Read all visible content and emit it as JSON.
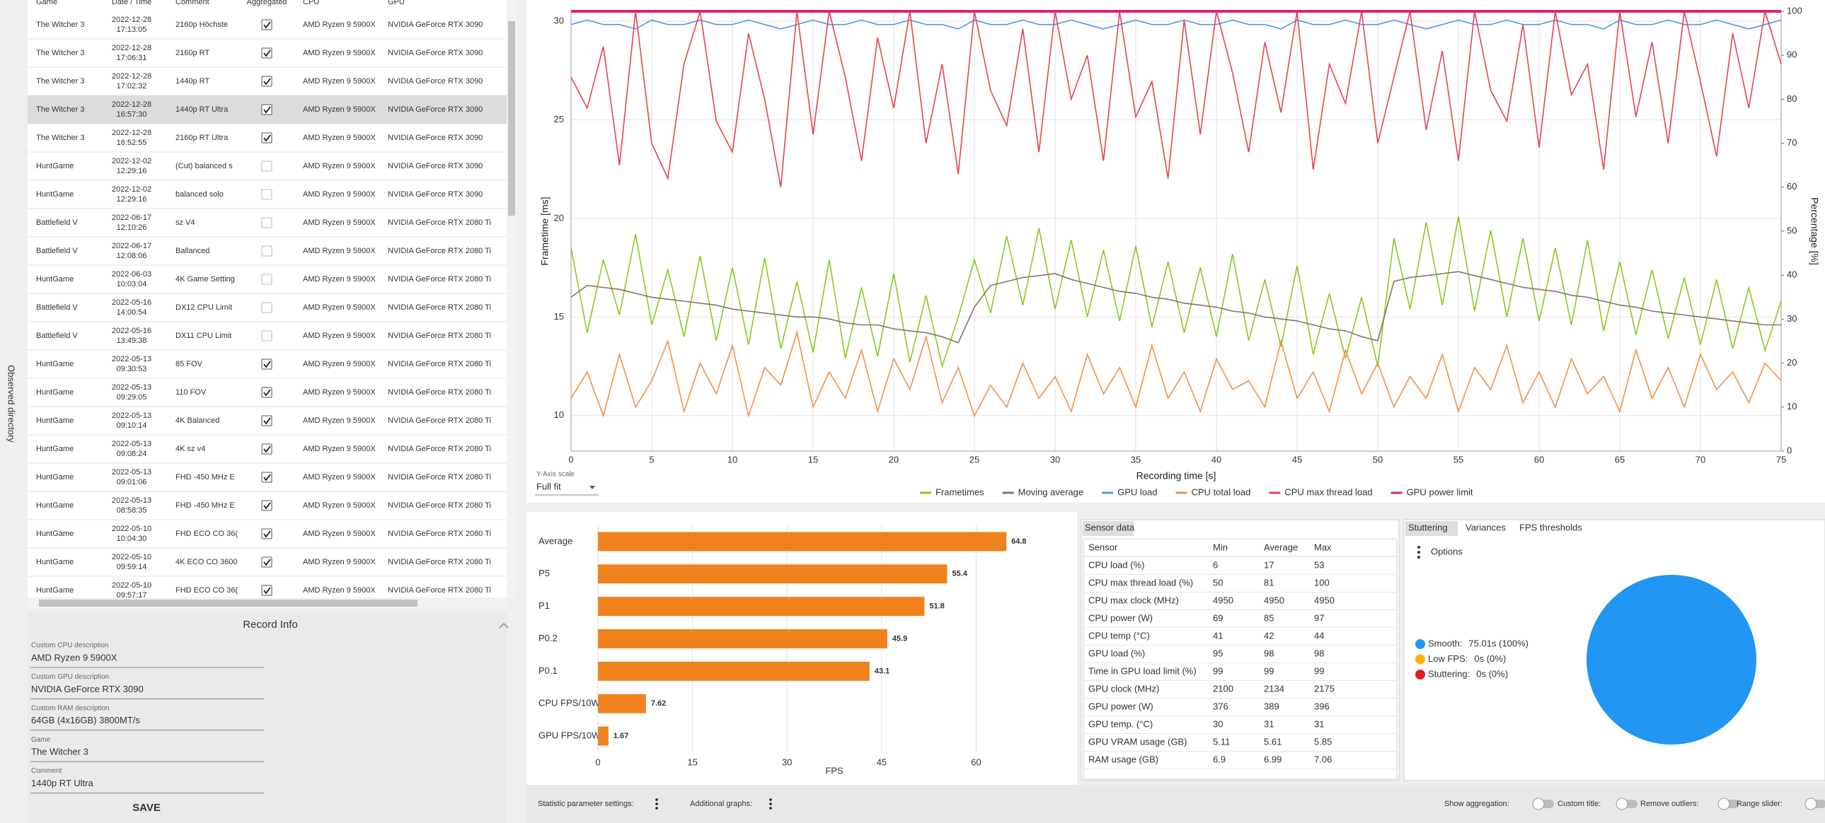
{
  "sidebar": {
    "label": "Observed directory"
  },
  "runs_table": {
    "headers": [
      "Game",
      "Date / Time",
      "Comment",
      "Aggregated",
      "CPU",
      "GPU"
    ],
    "rows": [
      {
        "game": "The Witcher 3",
        "date": "2022-12-28",
        "time": "17:13:05",
        "comment": "2160p Höchste",
        "aggregated": true,
        "cpu": "AMD Ryzen 9 5900X",
        "gpu": "NVIDIA GeForce RTX 3090"
      },
      {
        "game": "The Witcher 3",
        "date": "2022-12-28",
        "time": "17:06:31",
        "comment": "2160p RT",
        "aggregated": true,
        "cpu": "AMD Ryzen 9 5900X",
        "gpu": "NVIDIA GeForce RTX 3090"
      },
      {
        "game": "The Witcher 3",
        "date": "2022-12-28",
        "time": "17:02:32",
        "comment": "1440p RT",
        "aggregated": true,
        "cpu": "AMD Ryzen 9 5900X",
        "gpu": "NVIDIA GeForce RTX 3090"
      },
      {
        "game": "The Witcher 3",
        "date": "2022-12-28",
        "time": "16:57:30",
        "comment": "1440p RT Ultra",
        "aggregated": true,
        "cpu": "AMD Ryzen 9 5900X",
        "gpu": "NVIDIA GeForce RTX 3090",
        "selected": true
      },
      {
        "game": "The Witcher 3",
        "date": "2022-12-28",
        "time": "16:52:55",
        "comment": "2160p RT Ultra",
        "aggregated": true,
        "cpu": "AMD Ryzen 9 5900X",
        "gpu": "NVIDIA GeForce RTX 3090"
      },
      {
        "game": "HuntGame",
        "date": "2022-12-02",
        "time": "12:29:16",
        "comment": "(Cut) balanced s",
        "aggregated": false,
        "cpu": "AMD Ryzen 9 5900X",
        "gpu": "NVIDIA GeForce RTX 3090"
      },
      {
        "game": "HuntGame",
        "date": "2022-12-02",
        "time": "12:29:16",
        "comment": "balanced solo",
        "aggregated": false,
        "cpu": "AMD Ryzen 9 5900X",
        "gpu": "NVIDIA GeForce RTX 3090"
      },
      {
        "game": "Battlefield V",
        "date": "2022-06-17",
        "time": "12:10:26",
        "comment": "sz V4",
        "aggregated": false,
        "cpu": "AMD Ryzen 9 5900X",
        "gpu": "NVIDIA GeForce RTX 2080 Ti"
      },
      {
        "game": "Battlefield V",
        "date": "2022-06-17",
        "time": "12:08:06",
        "comment": "Ballanced",
        "aggregated": false,
        "cpu": "AMD Ryzen 9 5900X",
        "gpu": "NVIDIA GeForce RTX 2080 Ti"
      },
      {
        "game": "HuntGame",
        "date": "2022-06-03",
        "time": "10:03:04",
        "comment": "4K Game Setting",
        "aggregated": false,
        "cpu": "AMD Ryzen 9 5900X",
        "gpu": "NVIDIA GeForce RTX 2080 Ti"
      },
      {
        "game": "Battlefield V",
        "date": "2022-05-16",
        "time": "14:00:54",
        "comment": "DX12 CPU Limit",
        "aggregated": false,
        "cpu": "AMD Ryzen 9 5900X",
        "gpu": "NVIDIA GeForce RTX 2080 Ti"
      },
      {
        "game": "Battlefield V",
        "date": "2022-05-16",
        "time": "13:49:38",
        "comment": "DX11 CPU Limit",
        "aggregated": false,
        "cpu": "AMD Ryzen 9 5900X",
        "gpu": "NVIDIA GeForce RTX 2080 Ti"
      },
      {
        "game": "HuntGame",
        "date": "2022-05-13",
        "time": "09:30:53",
        "comment": "85 FOV",
        "aggregated": true,
        "cpu": "AMD Ryzen 9 5900X",
        "gpu": "NVIDIA GeForce RTX 2080 Ti"
      },
      {
        "game": "HuntGame",
        "date": "2022-05-13",
        "time": "09:29:05",
        "comment": "110 FOV",
        "aggregated": true,
        "cpu": "AMD Ryzen 9 5900X",
        "gpu": "NVIDIA GeForce RTX 2080 Ti"
      },
      {
        "game": "HuntGame",
        "date": "2022-05-13",
        "time": "09:10:14",
        "comment": "4K Balanced",
        "aggregated": true,
        "cpu": "AMD Ryzen 9 5900X",
        "gpu": "NVIDIA GeForce RTX 2080 Ti"
      },
      {
        "game": "HuntGame",
        "date": "2022-05-13",
        "time": "09:08:24",
        "comment": "4K sz v4",
        "aggregated": true,
        "cpu": "AMD Ryzen 9 5900X",
        "gpu": "NVIDIA GeForce RTX 2080 Ti"
      },
      {
        "game": "HuntGame",
        "date": "2022-05-13",
        "time": "09:01:06",
        "comment": "FHD -450 MHz E",
        "aggregated": true,
        "cpu": "AMD Ryzen 9 5900X",
        "gpu": "NVIDIA GeForce RTX 2080 Ti"
      },
      {
        "game": "HuntGame",
        "date": "2022-05-13",
        "time": "08:58:35",
        "comment": "FHD -450 MHz E",
        "aggregated": true,
        "cpu": "AMD Ryzen 9 5900X",
        "gpu": "NVIDIA GeForce RTX 2080 Ti"
      },
      {
        "game": "HuntGame",
        "date": "2022-05-10",
        "time": "10:04:30",
        "comment": "FHD ECO CO 36(",
        "aggregated": true,
        "cpu": "AMD Ryzen 9 5900X",
        "gpu": "NVIDIA GeForce RTX 2080 Ti"
      },
      {
        "game": "HuntGame",
        "date": "2022-05-10",
        "time": "09:59:14",
        "comment": "4K ECO CO 3600",
        "aggregated": true,
        "cpu": "AMD Ryzen 9 5900X",
        "gpu": "NVIDIA GeForce RTX 2080 Ti"
      },
      {
        "game": "HuntGame",
        "date": "2022-05-10",
        "time": "09:57:17",
        "comment": "FHD ECO CO 36(",
        "aggregated": true,
        "cpu": "AMD Ryzen 9 5900X",
        "gpu": "NVIDIA GeForce RTX 2080 Ti"
      }
    ]
  },
  "record_info": {
    "title": "Record Info",
    "fields": [
      {
        "label": "Custom CPU description",
        "value": "AMD Ryzen 9 5900X"
      },
      {
        "label": "Custom GPU description",
        "value": "NVIDIA GeForce RTX 3090"
      },
      {
        "label": "Custom RAM description",
        "value": "64GB (4x16GB) 3800MT/s"
      },
      {
        "label": "Game",
        "value": "The Witcher 3"
      },
      {
        "label": "Comment",
        "value": "1440p RT Ultra"
      }
    ],
    "save": "SAVE"
  },
  "chart_data": [
    {
      "type": "line",
      "xlabel": "Recording time [s]",
      "ylabel": "Frametime [ms]",
      "y2label": "Percentage [%]",
      "y_axis_scale_label": "Y-Axis scale",
      "y_axis_scale": "Full fit",
      "grid": true,
      "legend": "bottom",
      "x": [
        0,
        1,
        2,
        3,
        4,
        5,
        6,
        7,
        8,
        9,
        10,
        11,
        12,
        13,
        14,
        15,
        16,
        17,
        18,
        19,
        20,
        21,
        22,
        23,
        24,
        25,
        26,
        27,
        28,
        29,
        30,
        31,
        32,
        33,
        34,
        35,
        36,
        37,
        38,
        39,
        40,
        41,
        42,
        43,
        44,
        45,
        46,
        47,
        48,
        49,
        50,
        51,
        52,
        53,
        54,
        55,
        56,
        57,
        58,
        59,
        60,
        61,
        62,
        63,
        64,
        65,
        66,
        67,
        68,
        69,
        70,
        71,
        72,
        73,
        74,
        75
      ],
      "xlim": [
        0,
        75
      ],
      "xticks": [
        0,
        5,
        10,
        15,
        20,
        25,
        30,
        35,
        40,
        45,
        50,
        55,
        60,
        65,
        70,
        75
      ],
      "ylim": [
        8.2,
        30.5
      ],
      "yticks": [
        10,
        15,
        20,
        25,
        30
      ],
      "y2lim": [
        0,
        100
      ],
      "y2ticks": [
        0,
        10,
        20,
        30,
        40,
        50,
        60,
        70,
        80,
        90,
        100
      ],
      "series": [
        {
          "name": "Frametimes",
          "color": "#8cc81e",
          "axis": "y",
          "values": [
            18.5,
            14.2,
            17.9,
            15.1,
            19.2,
            14.6,
            17.4,
            14.0,
            18.1,
            13.8,
            17.5,
            13.6,
            18.0,
            13.4,
            16.8,
            13.2,
            17.9,
            12.9,
            16.5,
            13.0,
            17.2,
            12.7,
            16.1,
            12.5,
            15.0,
            17.9,
            15.2,
            19.1,
            15.6,
            19.5,
            15.4,
            18.9,
            15.0,
            18.4,
            14.8,
            18.6,
            14.5,
            17.8,
            14.2,
            17.5,
            14.0,
            18.2,
            13.8,
            16.9,
            13.5,
            17.6,
            13.1,
            16.2,
            12.9,
            16.0,
            12.5,
            19.0,
            15.4,
            19.8,
            15.6,
            20.1,
            15.3,
            19.4,
            15.0,
            19.0,
            14.8,
            18.5,
            14.6,
            18.9,
            14.3,
            17.8,
            14.1,
            17.4,
            13.9,
            17.0,
            13.6,
            16.9,
            13.4,
            16.5,
            13.3,
            15.8
          ]
        },
        {
          "name": "Moving average",
          "color": "#8a7464",
          "axis": "y",
          "values": [
            16.0,
            16.6,
            16.5,
            16.4,
            16.2,
            16.0,
            15.9,
            15.8,
            15.7,
            15.6,
            15.4,
            15.3,
            15.2,
            15.1,
            15.0,
            15.0,
            14.9,
            14.7,
            14.6,
            14.6,
            14.4,
            14.3,
            14.2,
            14.0,
            13.7,
            15.5,
            16.6,
            16.8,
            17.0,
            17.1,
            17.2,
            16.9,
            16.7,
            16.5,
            16.3,
            16.2,
            16.0,
            15.9,
            15.7,
            15.6,
            15.5,
            15.3,
            15.2,
            15.0,
            14.9,
            14.8,
            14.6,
            14.4,
            14.3,
            14.0,
            13.8,
            16.8,
            17.0,
            17.1,
            17.2,
            17.3,
            17.1,
            16.9,
            16.7,
            16.5,
            16.4,
            16.3,
            16.1,
            16.0,
            15.8,
            15.6,
            15.5,
            15.3,
            15.2,
            15.1,
            15.0,
            14.9,
            14.8,
            14.7,
            14.6,
            14.6
          ]
        },
        {
          "name": "GPU load",
          "color": "#4a9be8",
          "axis": "y2",
          "values": [
            97,
            98,
            97,
            97,
            96,
            98,
            97,
            97,
            98,
            97,
            97,
            98,
            97,
            96,
            97,
            98,
            97,
            97,
            98,
            97,
            97,
            98,
            97,
            97,
            96,
            98,
            97,
            97,
            98,
            97,
            97,
            98,
            97,
            96,
            97,
            98,
            97,
            97,
            98,
            97,
            97,
            98,
            97,
            97,
            96,
            98,
            97,
            97,
            98,
            97,
            97,
            98,
            97,
            96,
            97,
            98,
            97,
            97,
            98,
            97,
            97,
            98,
            97,
            97,
            96,
            98,
            97,
            97,
            98,
            97,
            97,
            98,
            97,
            96,
            97,
            98
          ]
        },
        {
          "name": "CPU total load",
          "color": "#f0914a",
          "axis": "y2",
          "values": [
            12,
            18,
            8,
            22,
            10,
            16,
            25,
            9,
            20,
            13,
            24,
            8,
            19,
            15,
            27,
            10,
            18,
            12,
            23,
            9,
            21,
            14,
            26,
            11,
            19,
            8,
            15,
            10,
            20,
            12,
            17,
            9,
            22,
            13,
            19,
            10,
            24,
            12,
            18,
            9,
            21,
            14,
            16,
            10,
            25,
            12,
            18,
            9,
            23,
            13,
            20,
            10,
            17,
            12,
            22,
            9,
            19,
            14,
            24,
            11,
            18,
            10,
            21,
            13,
            17,
            9,
            23,
            12,
            19,
            10,
            22,
            14,
            18,
            11,
            20,
            16
          ]
        },
        {
          "name": "CPU max thread load",
          "color": "#e8424f",
          "axis": "y2",
          "values": [
            85,
            78,
            92,
            65,
            100,
            70,
            62,
            88,
            100,
            75,
            68,
            95,
            80,
            60,
            100,
            72,
            100,
            85,
            66,
            94,
            78,
            100,
            70,
            88,
            63,
            100,
            82,
            74,
            96,
            68,
            100,
            80,
            90,
            66,
            100,
            76,
            84,
            62,
            98,
            72,
            100,
            86,
            68,
            93,
            77,
            100,
            64,
            88,
            79,
            100,
            70,
            85,
            100,
            73,
            91,
            66,
            100,
            82,
            75,
            97,
            69,
            100,
            81,
            88,
            64,
            100,
            76,
            93,
            70,
            100,
            84,
            67,
            95,
            78,
            100,
            88
          ]
        },
        {
          "name": "GPU power limit",
          "color": "#e0207a",
          "axis": "y2",
          "values": [
            100,
            100,
            100,
            100,
            100,
            100,
            100,
            100,
            100,
            100,
            100,
            100,
            100,
            100,
            100,
            100,
            100,
            100,
            100,
            100,
            100,
            100,
            100,
            100,
            100,
            100,
            100,
            100,
            100,
            100,
            100,
            100,
            100,
            100,
            100,
            100,
            100,
            100,
            100,
            100,
            100,
            100,
            100,
            100,
            100,
            100,
            100,
            100,
            100,
            100,
            100,
            100,
            100,
            100,
            100,
            100,
            100,
            100,
            100,
            100,
            100,
            100,
            100,
            100,
            100,
            100,
            100,
            100,
            100,
            100,
            100,
            100,
            100,
            100,
            100,
            100
          ]
        }
      ]
    },
    {
      "type": "bar",
      "orientation": "horizontal",
      "xlabel": "FPS",
      "categories": [
        "Average",
        "P5",
        "P1",
        "P0.2",
        "P0.1",
        "CPU FPS/10W",
        "GPU FPS/10W"
      ],
      "values": [
        64.8,
        55.4,
        51.8,
        45.9,
        43.1,
        7.62,
        1.67
      ],
      "color": "#f0821e",
      "xlim": [
        0,
        75
      ],
      "xticks": [
        0,
        15,
        30,
        45,
        60
      ],
      "grid": true
    },
    {
      "type": "pie",
      "tabs": [
        "Stuttering",
        "Variances",
        "FPS thresholds"
      ],
      "options_label": "Options",
      "categories": [
        "Smooth:",
        "Low FPS:",
        "Stuttering:"
      ],
      "values": [
        100,
        0,
        0
      ],
      "value_labels": [
        "75.01s (100%)",
        "0s (0%)",
        "0s (0%)"
      ],
      "colors": [
        "#2196f3",
        "#ffb300",
        "#e51c23"
      ]
    }
  ],
  "sensor_table": {
    "tab": "Sensor data",
    "headers": [
      "Sensor",
      "Min",
      "Average",
      "Max"
    ],
    "rows": [
      [
        "CPU load (%)",
        6,
        17,
        53
      ],
      [
        "CPU max thread load (%)",
        50,
        81,
        100
      ],
      [
        "CPU max clock (MHz)",
        4950,
        4950,
        4950
      ],
      [
        "CPU power (W)",
        69,
        85,
        97
      ],
      [
        "CPU temp (°C)",
        41,
        42,
        44
      ],
      [
        "GPU load (%)",
        95,
        98,
        98
      ],
      [
        "Time in GPU load limit (%)",
        99,
        99,
        99
      ],
      [
        "GPU clock (MHz)",
        2100,
        2134,
        2175
      ],
      [
        "GPU power (W)",
        376,
        389,
        396
      ],
      [
        "GPU temp. (°C)",
        30,
        31,
        31
      ],
      [
        "GPU VRAM usage (GB)",
        5.11,
        5.61,
        5.85
      ],
      [
        "RAM usage (GB)",
        6.9,
        6.99,
        7.06
      ]
    ]
  },
  "footer": {
    "statistic_settings": "Statistic parameter settings:",
    "additional_graphs": "Additional graphs:",
    "toggles": [
      "Show aggregation:",
      "Custom title:",
      "Remove outliers:",
      "Range slider:"
    ]
  }
}
